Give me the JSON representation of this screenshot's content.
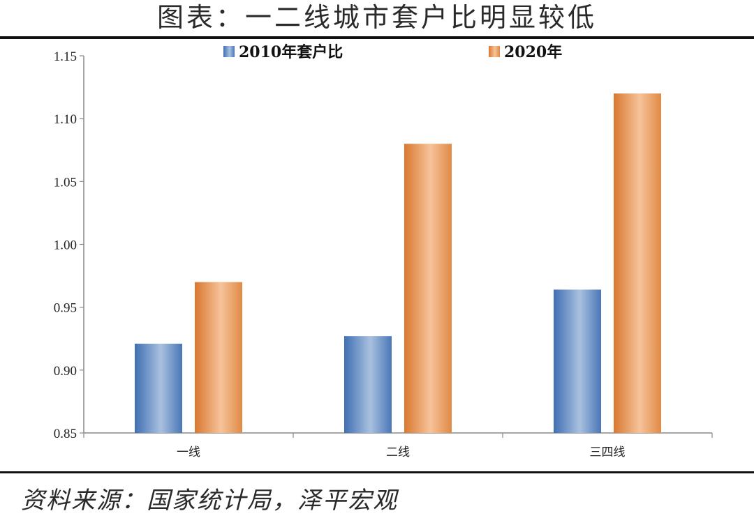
{
  "title": "图表：一二线城市套户比明显较低",
  "source": "资料来源：国家统计局，泽平宏观",
  "colors": {
    "series_2010": "#5b86c2",
    "series_2020": "#e9975a"
  },
  "chart_data": {
    "type": "bar",
    "categories": [
      "一线",
      "二线",
      "三四线"
    ],
    "series": [
      {
        "name": "2010年套户比",
        "values": [
          0.921,
          0.927,
          0.964
        ]
      },
      {
        "name": "2020年",
        "values": [
          0.97,
          1.08,
          1.12
        ]
      }
    ],
    "ylim": [
      0.85,
      1.15
    ],
    "yticks": [
      "0.85",
      "0.90",
      "0.95",
      "1.00",
      "1.05",
      "1.10",
      "1.15"
    ],
    "legend_position": "top-center",
    "grid": false
  }
}
